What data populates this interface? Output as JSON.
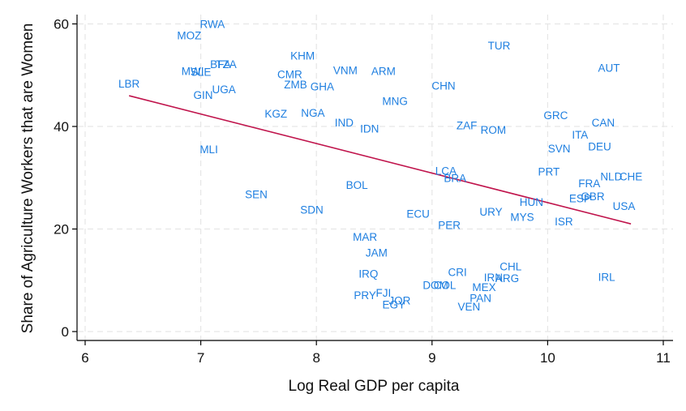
{
  "chart_data": {
    "type": "scatter",
    "title": "",
    "xlabel": "Log Real GDP per capita",
    "ylabel": "Share of Agriculture Workers that are Women",
    "xlim": [
      6,
      11
    ],
    "ylim": [
      0,
      62
    ],
    "xticks": [
      "6",
      "7",
      "8",
      "9",
      "10",
      "11"
    ],
    "yticks": [
      "0",
      "20",
      "40",
      "60"
    ],
    "grid": true,
    "label_color": "#1f7fe0",
    "fit_color": "#c0144c",
    "points": [
      {
        "label": "RWA",
        "x": 7.1,
        "y": 60.0
      },
      {
        "label": "MOZ",
        "x": 6.9,
        "y": 57.8
      },
      {
        "label": "TUR",
        "x": 9.58,
        "y": 55.8
      },
      {
        "label": "KHM",
        "x": 7.88,
        "y": 53.8
      },
      {
        "label": "BFA",
        "x": 7.17,
        "y": 52.2
      },
      {
        "label": "TZA",
        "x": 7.22,
        "y": 52.2
      },
      {
        "label": "AUT",
        "x": 10.53,
        "y": 51.5
      },
      {
        "label": "VNM",
        "x": 8.25,
        "y": 51.0
      },
      {
        "label": "ARM",
        "x": 8.58,
        "y": 50.8
      },
      {
        "label": "MWI",
        "x": 6.93,
        "y": 50.8
      },
      {
        "label": "SLE",
        "x": 7.0,
        "y": 50.7
      },
      {
        "label": "CMR",
        "x": 7.77,
        "y": 50.2
      },
      {
        "label": "ZMB",
        "x": 7.82,
        "y": 48.2
      },
      {
        "label": "GHA",
        "x": 8.05,
        "y": 47.8
      },
      {
        "label": "CHN",
        "x": 9.1,
        "y": 48.0
      },
      {
        "label": "LBR",
        "x": 6.38,
        "y": 48.4
      },
      {
        "label": "UGA",
        "x": 7.2,
        "y": 47.3
      },
      {
        "label": "GIN",
        "x": 7.02,
        "y": 46.2
      },
      {
        "label": "MNG",
        "x": 8.68,
        "y": 45.0
      },
      {
        "label": "KGZ",
        "x": 7.65,
        "y": 42.5
      },
      {
        "label": "NGA",
        "x": 7.97,
        "y": 42.7
      },
      {
        "label": "GRC",
        "x": 10.07,
        "y": 42.2
      },
      {
        "label": "IND",
        "x": 8.24,
        "y": 40.8
      },
      {
        "label": "CAN",
        "x": 10.48,
        "y": 40.8
      },
      {
        "label": "ZAF",
        "x": 9.3,
        "y": 40.2
      },
      {
        "label": "IDN",
        "x": 8.46,
        "y": 39.6
      },
      {
        "label": "ROM",
        "x": 9.53,
        "y": 39.4
      },
      {
        "label": "ITA",
        "x": 10.28,
        "y": 38.4
      },
      {
        "label": "DEU",
        "x": 10.45,
        "y": 36.1
      },
      {
        "label": "SVN",
        "x": 10.1,
        "y": 35.7
      },
      {
        "label": "MLI",
        "x": 7.07,
        "y": 35.6
      },
      {
        "label": "PRT",
        "x": 10.01,
        "y": 31.2
      },
      {
        "label": "LCA",
        "x": 9.12,
        "y": 31.4
      },
      {
        "label": "NLD",
        "x": 10.55,
        "y": 30.3
      },
      {
        "label": "CHE",
        "x": 10.72,
        "y": 30.3
      },
      {
        "label": "BRA",
        "x": 9.2,
        "y": 30.0
      },
      {
        "label": "FRA",
        "x": 10.36,
        "y": 28.9
      },
      {
        "label": "BOL",
        "x": 8.35,
        "y": 28.6
      },
      {
        "label": "SEN",
        "x": 7.48,
        "y": 26.8
      },
      {
        "label": "ESP",
        "x": 10.28,
        "y": 26.0
      },
      {
        "label": "GBR",
        "x": 10.39,
        "y": 26.4
      },
      {
        "label": "HUN",
        "x": 9.86,
        "y": 25.3
      },
      {
        "label": "USA",
        "x": 10.66,
        "y": 24.5
      },
      {
        "label": "SDN",
        "x": 7.96,
        "y": 23.8
      },
      {
        "label": "URY",
        "x": 9.51,
        "y": 23.4
      },
      {
        "label": "ECU",
        "x": 8.88,
        "y": 23.0
      },
      {
        "label": "MYS",
        "x": 9.78,
        "y": 22.4
      },
      {
        "label": "ISR",
        "x": 10.14,
        "y": 21.5
      },
      {
        "label": "PER",
        "x": 9.15,
        "y": 20.8
      },
      {
        "label": "MAR",
        "x": 8.42,
        "y": 18.5
      },
      {
        "label": "JAM",
        "x": 8.52,
        "y": 15.4
      },
      {
        "label": "CHL",
        "x": 9.68,
        "y": 12.7
      },
      {
        "label": "CRI",
        "x": 9.22,
        "y": 11.6
      },
      {
        "label": "IRQ",
        "x": 8.45,
        "y": 11.3
      },
      {
        "label": "IRN",
        "x": 9.53,
        "y": 10.6
      },
      {
        "label": "ARG",
        "x": 9.65,
        "y": 10.4
      },
      {
        "label": "IRL",
        "x": 10.51,
        "y": 10.7
      },
      {
        "label": "DOM",
        "x": 9.03,
        "y": 9.1
      },
      {
        "label": "COL",
        "x": 9.11,
        "y": 9.1
      },
      {
        "label": "MEX",
        "x": 9.45,
        "y": 8.7
      },
      {
        "label": "PRY",
        "x": 8.42,
        "y": 7.1
      },
      {
        "label": "FJI",
        "x": 8.58,
        "y": 7.6
      },
      {
        "label": "PAN",
        "x": 9.42,
        "y": 6.6
      },
      {
        "label": "JOR",
        "x": 8.72,
        "y": 6.1
      },
      {
        "label": "EGY",
        "x": 8.67,
        "y": 5.3
      },
      {
        "label": "VEN",
        "x": 9.32,
        "y": 4.9
      }
    ],
    "fit_line": {
      "x": [
        6.38,
        10.72
      ],
      "y": [
        46.0,
        21.0
      ]
    }
  }
}
